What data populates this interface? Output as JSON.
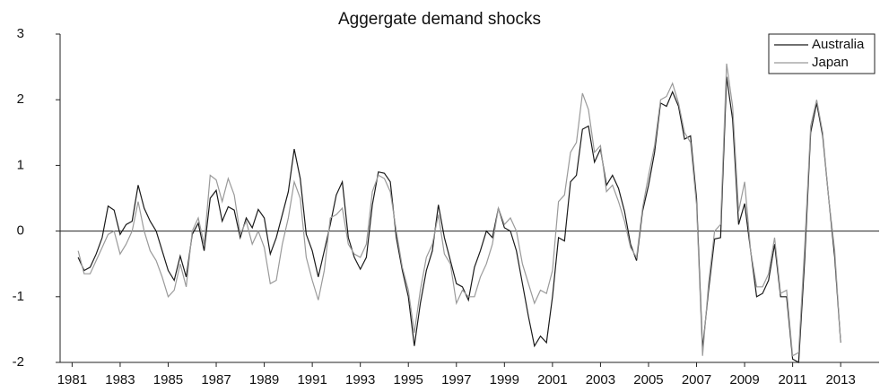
{
  "chart_data": {
    "type": "line",
    "title": "Aggergate demand shocks",
    "x": [
      1981.25,
      1981.5,
      1981.75,
      1982,
      1982.25,
      1982.5,
      1982.75,
      1983,
      1983.25,
      1983.5,
      1983.75,
      1984,
      1984.25,
      1984.5,
      1984.75,
      1985,
      1985.25,
      1985.5,
      1985.75,
      1986,
      1986.25,
      1986.5,
      1986.75,
      1987,
      1987.25,
      1987.5,
      1987.75,
      1988,
      1988.25,
      1988.5,
      1988.75,
      1989,
      1989.25,
      1989.5,
      1989.75,
      1990,
      1990.25,
      1990.5,
      1990.75,
      1991,
      1991.25,
      1991.5,
      1991.75,
      1992,
      1992.25,
      1992.5,
      1992.75,
      1993,
      1993.25,
      1993.5,
      1993.75,
      1994,
      1994.25,
      1994.5,
      1994.75,
      1995,
      1995.25,
      1995.5,
      1995.75,
      1996,
      1996.25,
      1996.5,
      1996.75,
      1997,
      1997.25,
      1997.5,
      1997.75,
      1998,
      1998.25,
      1998.5,
      1998.75,
      1999,
      1999.25,
      1999.5,
      1999.75,
      2000,
      2000.25,
      2000.5,
      2000.75,
      2001,
      2001.25,
      2001.5,
      2001.75,
      2002,
      2002.25,
      2002.5,
      2002.75,
      2003,
      2003.25,
      2003.5,
      2003.75,
      2004,
      2004.25,
      2004.5,
      2004.75,
      2005,
      2005.25,
      2005.5,
      2005.75,
      2006,
      2006.25,
      2006.5,
      2006.75,
      2007,
      2007.25,
      2007.5,
      2007.75,
      2008,
      2008.25,
      2008.5,
      2008.75,
      2009,
      2009.25,
      2009.5,
      2009.75,
      2010,
      2010.25,
      2010.5,
      2010.75,
      2011,
      2011.25,
      2011.5,
      2011.75,
      2012,
      2012.25,
      2012.5,
      2012.75,
      2013
    ],
    "series": [
      {
        "name": "Australia",
        "color": "#1a1a1a",
        "values": [
          -0.4,
          -0.6,
          -0.55,
          -0.35,
          -0.1,
          0.38,
          0.32,
          -0.05,
          0.1,
          0.15,
          0.7,
          0.35,
          0.15,
          0.0,
          -0.3,
          -0.6,
          -0.75,
          -0.38,
          -0.7,
          -0.05,
          0.12,
          -0.3,
          0.5,
          0.62,
          0.15,
          0.37,
          0.32,
          -0.1,
          0.2,
          0.05,
          0.33,
          0.2,
          -0.35,
          -0.1,
          0.25,
          0.6,
          1.25,
          0.8,
          -0.05,
          -0.3,
          -0.7,
          -0.3,
          0.1,
          0.55,
          0.75,
          -0.1,
          -0.4,
          -0.58,
          -0.4,
          0.4,
          0.9,
          0.88,
          0.75,
          -0.1,
          -0.6,
          -1.0,
          -1.75,
          -1.1,
          -0.6,
          -0.3,
          0.4,
          -0.1,
          -0.45,
          -0.8,
          -0.85,
          -1.05,
          -0.55,
          -0.3,
          0.0,
          -0.1,
          0.35,
          0.05,
          0.0,
          -0.3,
          -0.8,
          -1.3,
          -1.75,
          -1.6,
          -1.7,
          -1.0,
          -0.1,
          -0.15,
          0.75,
          0.85,
          1.55,
          1.6,
          1.05,
          1.25,
          0.7,
          0.85,
          0.65,
          0.3,
          -0.2,
          -0.45,
          0.3,
          0.7,
          1.2,
          1.95,
          1.9,
          2.12,
          1.9,
          1.4,
          1.45,
          0.5,
          -1.8,
          -0.9,
          -0.12,
          -0.1,
          2.35,
          1.7,
          0.1,
          0.42,
          -0.3,
          -1.0,
          -0.95,
          -0.75,
          -0.2,
          -1.0,
          -1.0,
          -1.95,
          -2.0,
          -0.45,
          1.5,
          1.95,
          1.45,
          0.5,
          -0.4,
          -1.7
        ]
      },
      {
        "name": "Japan",
        "color": "#9a9a9a",
        "values": [
          -0.3,
          -0.65,
          -0.65,
          -0.45,
          -0.25,
          -0.05,
          0.0,
          -0.35,
          -0.2,
          0.0,
          0.45,
          0.0,
          -0.3,
          -0.45,
          -0.7,
          -1.0,
          -0.9,
          -0.5,
          -0.85,
          0.0,
          0.2,
          -0.2,
          0.85,
          0.78,
          0.45,
          0.8,
          0.55,
          -0.05,
          0.15,
          -0.2,
          0.0,
          -0.25,
          -0.8,
          -0.75,
          -0.2,
          0.2,
          0.75,
          0.5,
          -0.4,
          -0.75,
          -1.05,
          -0.6,
          0.2,
          0.25,
          0.35,
          -0.2,
          -0.35,
          -0.4,
          -0.2,
          0.6,
          0.85,
          0.8,
          0.6,
          0.0,
          -0.55,
          -0.9,
          -1.55,
          -0.9,
          -0.4,
          -0.2,
          0.25,
          -0.35,
          -0.5,
          -1.1,
          -0.9,
          -1.0,
          -1.0,
          -0.7,
          -0.5,
          -0.2,
          0.35,
          0.1,
          0.2,
          0.0,
          -0.5,
          -0.8,
          -1.1,
          -0.9,
          -0.95,
          -0.6,
          0.45,
          0.55,
          1.2,
          1.35,
          2.1,
          1.85,
          1.2,
          1.3,
          0.6,
          0.7,
          0.45,
          0.15,
          -0.25,
          -0.4,
          0.35,
          0.85,
          1.3,
          2.0,
          2.05,
          2.25,
          1.95,
          1.5,
          1.35,
          0.4,
          -1.9,
          -0.8,
          0.0,
          0.1,
          2.55,
          1.9,
          0.3,
          0.75,
          -0.3,
          -0.85,
          -0.85,
          -0.65,
          -0.1,
          -0.95,
          -0.9,
          -1.9,
          -1.85,
          -0.25,
          1.6,
          2.0,
          1.5,
          0.5,
          -0.3,
          -1.7
        ]
      }
    ],
    "xlim": [
      1980.5,
      2014.6
    ],
    "xticks": [
      1981,
      1983,
      1985,
      1987,
      1989,
      1991,
      1993,
      1995,
      1997,
      1999,
      2001,
      2003,
      2005,
      2007,
      2009,
      2011,
      2013
    ],
    "ylim": [
      -2,
      3
    ],
    "yticks": [
      -2,
      -1,
      0,
      1,
      2,
      3
    ],
    "legend": "upper right"
  }
}
